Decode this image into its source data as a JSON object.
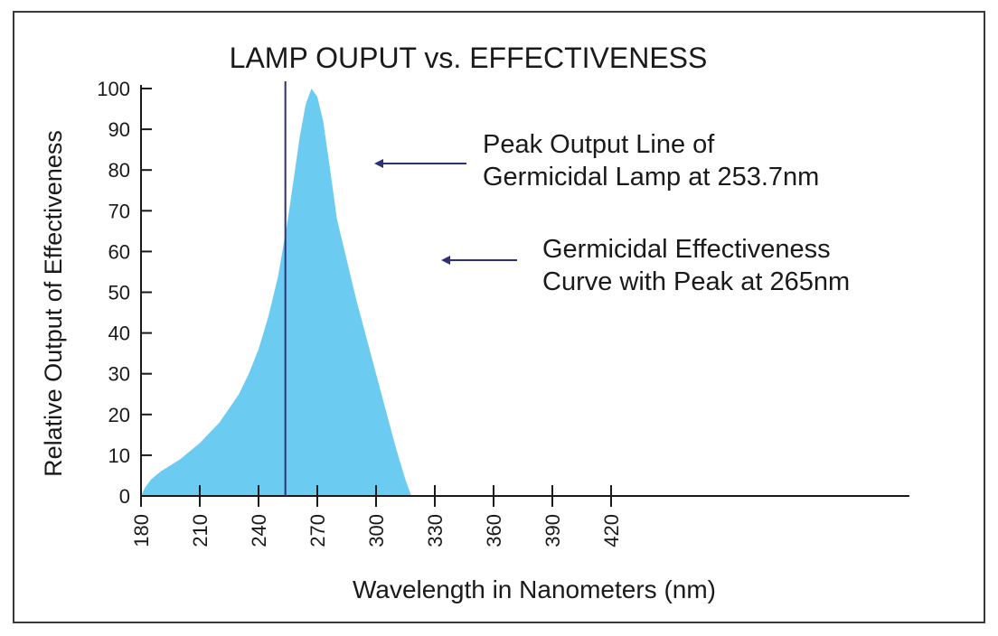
{
  "chart_data": {
    "type": "area",
    "title": "LAMP OUPUT vs. EFFECTIVENESS",
    "xlabel": "Wavelength in Nanometers (nm)",
    "ylabel": "Relative Output of Effectiveness",
    "xlim": [
      180,
      440
    ],
    "ylim": [
      0,
      100
    ],
    "x_ticks": [
      "180",
      "210",
      "240",
      "270",
      "300",
      "330",
      "360",
      "390",
      "420"
    ],
    "y_ticks": [
      "0",
      "10",
      "20",
      "30",
      "40",
      "50",
      "60",
      "70",
      "80",
      "90",
      "100"
    ],
    "grid": false,
    "series": [
      {
        "color": "#6ccbf1",
        "x": [
          180,
          182,
          185,
          190,
          200,
          210,
          220,
          230,
          235,
          240,
          245,
          250,
          255,
          258,
          261,
          264,
          267,
          270,
          273,
          276,
          280,
          285,
          290,
          295,
          300,
          305,
          310,
          315,
          318
        ],
        "y": [
          0,
          2,
          4,
          6,
          9,
          13,
          18,
          25,
          30,
          36,
          44,
          54,
          68,
          78,
          88,
          96,
          100,
          98,
          92,
          82,
          68,
          58,
          48,
          39,
          30,
          21,
          12,
          4,
          0
        ]
      }
    ],
    "vertical_line": {
      "x": 253.7,
      "color": "#2c2f7a"
    },
    "annotations": [
      {
        "lines": [
          "Peak Output Line of",
          "Germicidal Lamp at 253.7nm"
        ],
        "arrow_color": "#2c2f7a"
      },
      {
        "lines": [
          "Germicidal Effectiveness",
          "Curve with Peak at 265nm"
        ],
        "arrow_color": "#2c2f7a"
      }
    ]
  }
}
